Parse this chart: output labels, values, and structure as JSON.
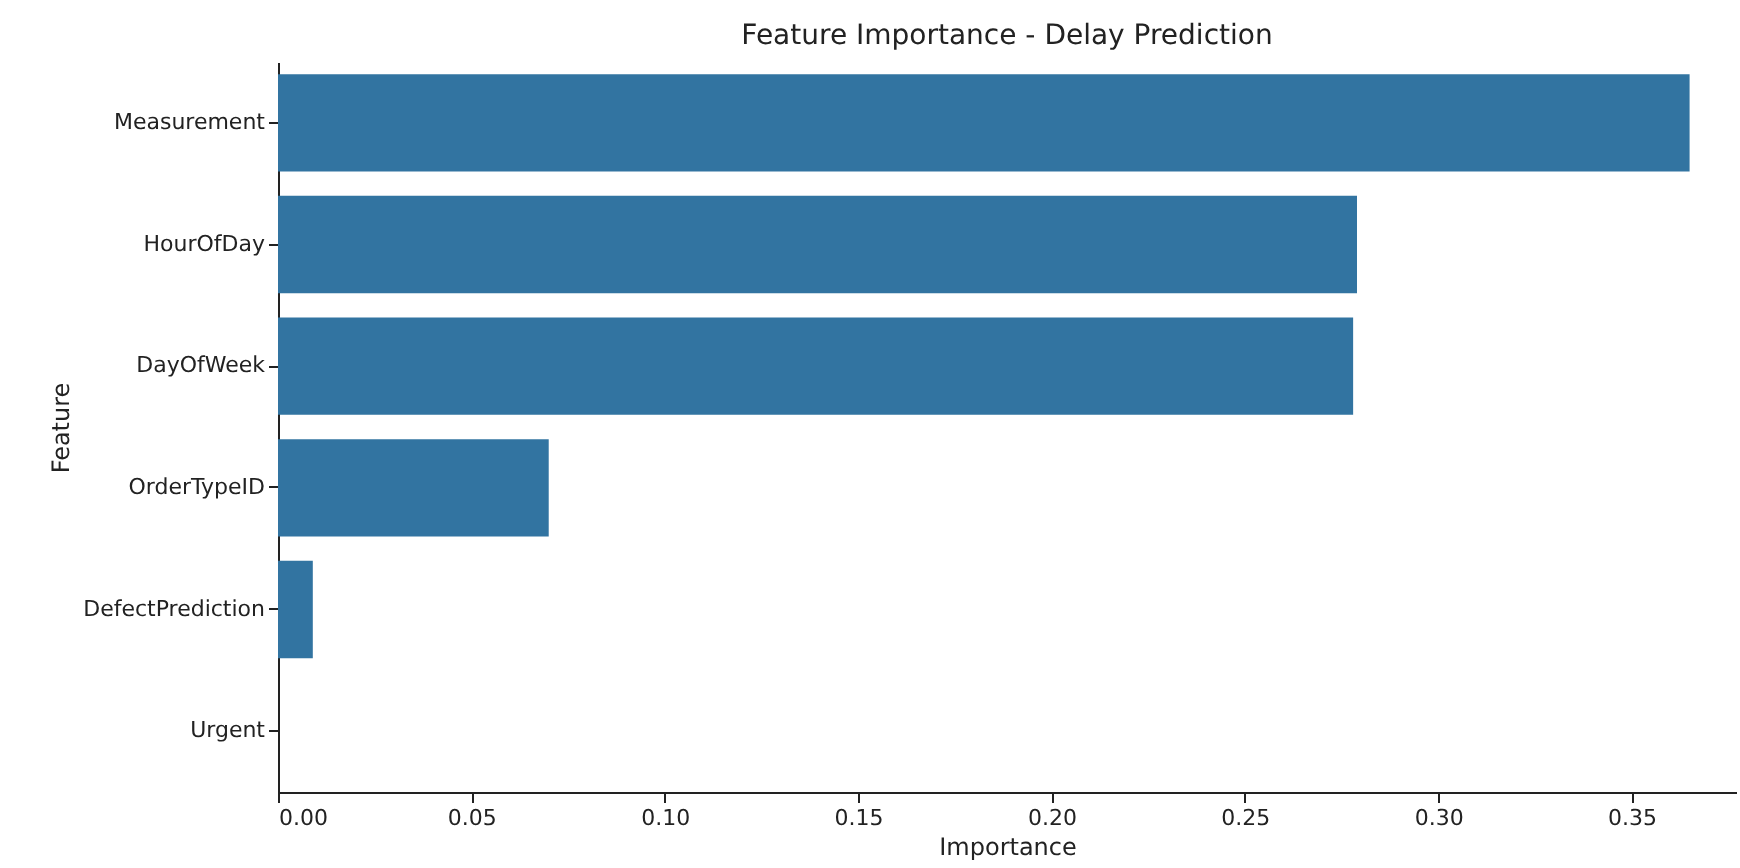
{
  "chart_data": {
    "type": "bar",
    "orientation": "horizontal",
    "title": "Feature Importance - Delay Prediction",
    "xlabel": "Importance",
    "ylabel": "Feature",
    "categories": [
      "Measurement",
      "HourOfDay",
      "DayOfWeek",
      "OrderTypeID",
      "DefectPrediction",
      "Urgent"
    ],
    "values": [
      0.365,
      0.279,
      0.278,
      0.07,
      0.009,
      0.0
    ],
    "color": "#3274a1",
    "xlim": [
      0,
      0.377
    ],
    "xticks": [
      {
        "value": 0,
        "label": "0.00"
      },
      {
        "value": 0.05,
        "label": "0.05"
      },
      {
        "value": 0.1,
        "label": "0.10"
      },
      {
        "value": 0.15,
        "label": "0.15"
      },
      {
        "value": 0.2,
        "label": "0.20"
      },
      {
        "value": 0.25,
        "label": "0.25"
      },
      {
        "value": 0.3,
        "label": "0.30"
      },
      {
        "value": 0.35,
        "label": "0.35"
      }
    ],
    "grid": false
  }
}
